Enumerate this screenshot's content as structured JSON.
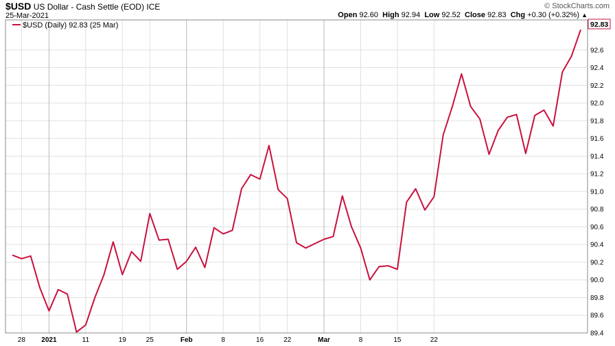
{
  "header": {
    "ticker": "$USD",
    "name": "US Dollar - Cash Settle (EOD)",
    "exchange": "ICE",
    "date": "25-Mar-2021",
    "watermark": "© StockCharts.com",
    "stats": [
      {
        "label": "Open",
        "value": "92.60"
      },
      {
        "label": "High",
        "value": "92.94"
      },
      {
        "label": "Low",
        "value": "92.52"
      },
      {
        "label": "Close",
        "value": "92.83"
      },
      {
        "label": "Chg",
        "value": "+0.30 (+0.32%)"
      }
    ],
    "up_arrow": "▲"
  },
  "colors": {
    "line": "#c8103c",
    "grid": "#e0e0e0",
    "axis": "#888888"
  },
  "chart_data": {
    "type": "line",
    "legend_text": "$USD (Daily) 92.83 (25 Mar)",
    "last_value_label": "92.83",
    "ylim": [
      89.4,
      92.94
    ],
    "y_ticks": [
      "89.4",
      "89.6",
      "89.8",
      "90.0",
      "90.2",
      "90.4",
      "90.6",
      "90.8",
      "91.0",
      "91.2",
      "91.4",
      "91.6",
      "91.8",
      "92.0",
      "92.2",
      "92.4",
      "92.6"
    ],
    "x_labels": [
      {
        "label": "28",
        "index": 1,
        "bold": false
      },
      {
        "label": "2021",
        "index": 4,
        "bold": true
      },
      {
        "label": "11",
        "index": 8,
        "bold": false
      },
      {
        "label": "19",
        "index": 12,
        "bold": false
      },
      {
        "label": "25",
        "index": 15,
        "bold": false
      },
      {
        "label": "Feb",
        "index": 19,
        "bold": true
      },
      {
        "label": "8",
        "index": 23,
        "bold": false
      },
      {
        "label": "16",
        "index": 27,
        "bold": false
      },
      {
        "label": "22",
        "index": 30,
        "bold": false
      },
      {
        "label": "Mar",
        "index": 34,
        "bold": true
      },
      {
        "label": "8",
        "index": 38,
        "bold": false
      },
      {
        "label": "15",
        "index": 42,
        "bold": false
      },
      {
        "label": "22",
        "index": 46,
        "bold": false
      }
    ],
    "major_index": [
      4,
      19,
      34
    ],
    "values": [
      90.28,
      90.24,
      90.27,
      89.91,
      89.65,
      89.89,
      89.84,
      89.41,
      89.49,
      89.8,
      90.06,
      90.43,
      90.06,
      90.32,
      90.21,
      90.75,
      90.45,
      90.46,
      90.12,
      90.21,
      90.37,
      90.14,
      90.59,
      90.52,
      90.56,
      91.03,
      91.19,
      91.14,
      91.52,
      91.02,
      90.92,
      90.42,
      90.36,
      90.41,
      90.46,
      90.49,
      90.95,
      90.6,
      90.36,
      90.0,
      90.15,
      90.16,
      90.12,
      90.88,
      91.03,
      90.79,
      90.94,
      91.64,
      91.96,
      92.33,
      91.96,
      91.82,
      91.42,
      91.69,
      91.84,
      91.87,
      91.43,
      91.86,
      91.92,
      91.74,
      92.35,
      92.53,
      92.83
    ]
  }
}
